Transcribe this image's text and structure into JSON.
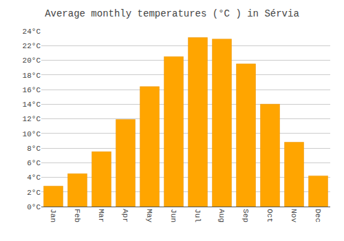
{
  "chart_data": {
    "type": "bar",
    "title": "Average monthly temperatures (°C ) in Sérvia",
    "categories": [
      "Jan",
      "Feb",
      "Mar",
      "Apr",
      "May",
      "Jun",
      "Jul",
      "Aug",
      "Sep",
      "Oct",
      "Nov",
      "Dec"
    ],
    "values": [
      2.8,
      4.5,
      7.5,
      11.9,
      16.4,
      20.5,
      23.1,
      22.9,
      19.5,
      14.0,
      8.8,
      4.2
    ],
    "color": "#FFA500",
    "ylim": [
      0,
      24
    ],
    "yticks": [
      {
        "value": 0,
        "label": "0°C"
      },
      {
        "value": 2,
        "label": "2°C"
      },
      {
        "value": 4,
        "label": "4°C"
      },
      {
        "value": 6,
        "label": "6°C"
      },
      {
        "value": 8,
        "label": "8°C"
      },
      {
        "value": 10,
        "label": "10°C"
      },
      {
        "value": 12,
        "label": "12°C"
      },
      {
        "value": 14,
        "label": "14°C"
      },
      {
        "value": 16,
        "label": "16°C"
      },
      {
        "value": 18,
        "label": "18°C"
      },
      {
        "value": 20,
        "label": "20°C"
      },
      {
        "value": 22,
        "label": "22°C"
      },
      {
        "value": 24,
        "label": "24°C"
      }
    ],
    "grid": true
  }
}
